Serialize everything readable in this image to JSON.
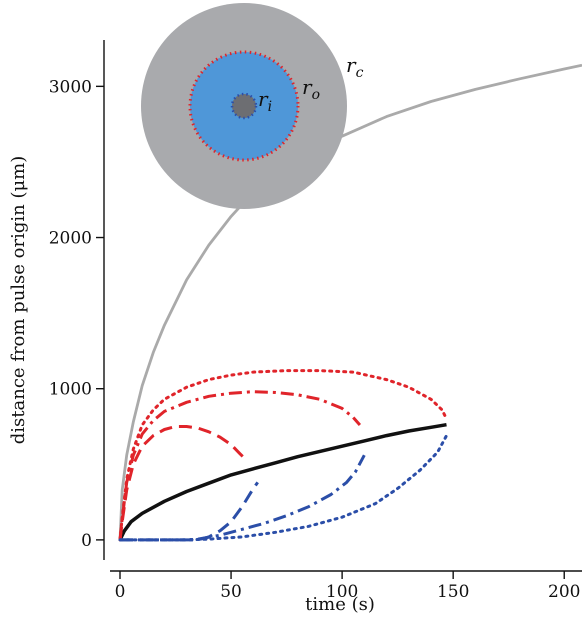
{
  "chart_data": {
    "type": "line",
    "title": "",
    "xlabel": "time (s)",
    "ylabel": "distance from pulse origin (μm)",
    "xlim": [
      0,
      208
    ],
    "ylim": [
      -100,
      3300
    ],
    "xticks": [
      0,
      50,
      100,
      150,
      200
    ],
    "yticks": [
      0,
      1000,
      2000,
      3000
    ],
    "grid": false,
    "legend": "none",
    "series": [
      {
        "color": "#aaaaaa",
        "style": "solid",
        "points": [
          [
            0,
            0
          ],
          [
            1,
            330
          ],
          [
            3,
            560
          ],
          [
            6,
            780
          ],
          [
            10,
            1020
          ],
          [
            15,
            1240
          ],
          [
            20,
            1420
          ],
          [
            30,
            1720
          ],
          [
            40,
            1950
          ],
          [
            50,
            2140
          ],
          [
            60,
            2300
          ],
          [
            80,
            2510
          ],
          [
            100,
            2670
          ],
          [
            120,
            2800
          ],
          [
            140,
            2900
          ],
          [
            160,
            2980
          ],
          [
            180,
            3050
          ],
          [
            200,
            3115
          ],
          [
            208,
            3140
          ]
        ]
      },
      {
        "color": "#111111",
        "style": "solid",
        "points": [
          [
            0,
            0
          ],
          [
            2,
            60
          ],
          [
            5,
            120
          ],
          [
            10,
            175
          ],
          [
            20,
            255
          ],
          [
            30,
            320
          ],
          [
            40,
            375
          ],
          [
            50,
            430
          ],
          [
            60,
            470
          ],
          [
            70,
            510
          ],
          [
            80,
            550
          ],
          [
            90,
            585
          ],
          [
            100,
            620
          ],
          [
            110,
            655
          ],
          [
            120,
            690
          ],
          [
            130,
            720
          ],
          [
            140,
            745
          ],
          [
            147,
            762
          ]
        ]
      },
      {
        "color": "#e0242a",
        "style": "dashed",
        "points": [
          [
            0,
            0
          ],
          [
            1,
            120
          ],
          [
            3,
            330
          ],
          [
            6,
            500
          ],
          [
            10,
            620
          ],
          [
            15,
            690
          ],
          [
            20,
            730
          ],
          [
            25,
            750
          ],
          [
            30,
            750
          ],
          [
            35,
            740
          ],
          [
            40,
            715
          ],
          [
            45,
            680
          ],
          [
            50,
            630
          ],
          [
            54,
            570
          ],
          [
            56,
            540
          ]
        ]
      },
      {
        "color": "#e0242a",
        "style": "dashdot",
        "points": [
          [
            0,
            0
          ],
          [
            1,
            140
          ],
          [
            3,
            380
          ],
          [
            6,
            560
          ],
          [
            10,
            700
          ],
          [
            15,
            790
          ],
          [
            20,
            850
          ],
          [
            30,
            910
          ],
          [
            40,
            950
          ],
          [
            50,
            970
          ],
          [
            60,
            980
          ],
          [
            70,
            975
          ],
          [
            80,
            960
          ],
          [
            90,
            930
          ],
          [
            100,
            870
          ],
          [
            105,
            810
          ],
          [
            108,
            760
          ]
        ]
      },
      {
        "color": "#e0242a",
        "style": "dotted",
        "points": [
          [
            0,
            0
          ],
          [
            1,
            150
          ],
          [
            3,
            400
          ],
          [
            6,
            600
          ],
          [
            10,
            760
          ],
          [
            15,
            860
          ],
          [
            20,
            930
          ],
          [
            30,
            1010
          ],
          [
            40,
            1060
          ],
          [
            50,
            1090
          ],
          [
            60,
            1110
          ],
          [
            75,
            1120
          ],
          [
            90,
            1120
          ],
          [
            105,
            1110
          ],
          [
            120,
            1060
          ],
          [
            130,
            1010
          ],
          [
            140,
            930
          ],
          [
            145,
            860
          ],
          [
            147,
            800
          ]
        ]
      },
      {
        "color": "#2b4ea8",
        "style": "dashed",
        "points": [
          [
            0,
            0
          ],
          [
            10,
            0
          ],
          [
            20,
            0
          ],
          [
            30,
            0
          ],
          [
            35,
            0
          ],
          [
            40,
            20
          ],
          [
            45,
            60
          ],
          [
            50,
            120
          ],
          [
            55,
            220
          ],
          [
            60,
            340
          ],
          [
            62,
            380
          ]
        ]
      },
      {
        "color": "#2b4ea8",
        "style": "dashdot",
        "points": [
          [
            0,
            0
          ],
          [
            10,
            0
          ],
          [
            20,
            0
          ],
          [
            30,
            0
          ],
          [
            35,
            5
          ],
          [
            45,
            30
          ],
          [
            55,
            70
          ],
          [
            65,
            110
          ],
          [
            75,
            160
          ],
          [
            85,
            220
          ],
          [
            95,
            300
          ],
          [
            102,
            380
          ],
          [
            106,
            450
          ],
          [
            110,
            560
          ]
        ]
      },
      {
        "color": "#2b4ea8",
        "style": "dotted",
        "points": [
          [
            0,
            0
          ],
          [
            10,
            0
          ],
          [
            20,
            0
          ],
          [
            30,
            0
          ],
          [
            40,
            5
          ],
          [
            55,
            20
          ],
          [
            70,
            50
          ],
          [
            85,
            90
          ],
          [
            100,
            150
          ],
          [
            115,
            240
          ],
          [
            125,
            340
          ],
          [
            135,
            460
          ],
          [
            143,
            580
          ],
          [
            147,
            690
          ]
        ]
      }
    ],
    "inset": {
      "labels": {
        "r_c": "r",
        "r_c_sub": "c",
        "r_o": "r",
        "r_o_sub": "o",
        "r_i": "r",
        "r_i_sub": "i"
      },
      "colors": {
        "outer": "#a9aaad",
        "middle": "#4f97d8",
        "inner": "#6d6e72",
        "outer_ring": "#e0242a",
        "inner_ring": "#2b4ea8"
      }
    }
  }
}
